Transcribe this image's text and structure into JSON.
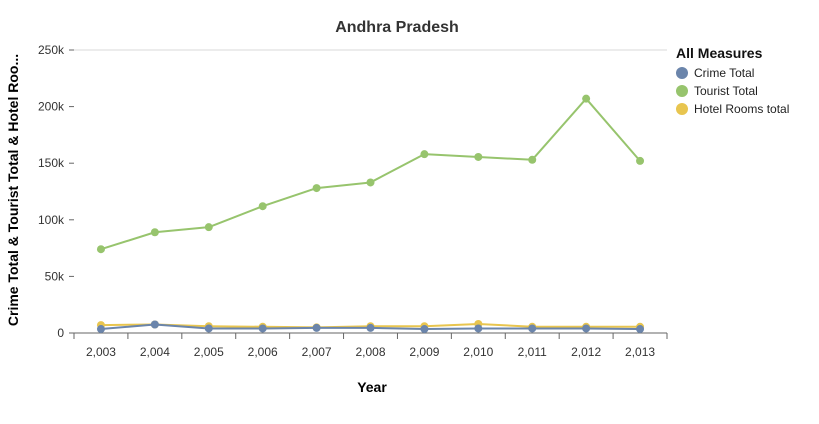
{
  "chart_data": {
    "type": "line",
    "title": "Andhra Pradesh",
    "xlabel": "Year",
    "ylabel": "Crime Total & Tourist Total & Hotel Roo...",
    "categories": [
      "2,003",
      "2,004",
      "2,005",
      "2,006",
      "2,007",
      "2,008",
      "2,009",
      "2,010",
      "2,011",
      "2,012",
      "2,013"
    ],
    "ylim": [
      0,
      250000
    ],
    "yticks": [
      0,
      50000,
      100000,
      150000,
      200000,
      250000
    ],
    "ytick_labels": [
      "0",
      "50k",
      "100k",
      "150k",
      "200k",
      "250k"
    ],
    "grid": "top line only",
    "legend": {
      "title": "All Measures",
      "position": "right"
    },
    "series": [
      {
        "name": "Crime Total",
        "color": "#6b85ab",
        "values": [
          3500,
          7500,
          4000,
          4000,
          4500,
          4500,
          3500,
          4000,
          4000,
          4000,
          3500
        ]
      },
      {
        "name": "Tourist Total",
        "color": "#97c46d",
        "values": [
          74000,
          89000,
          93500,
          112000,
          128000,
          133000,
          158000,
          155500,
          153000,
          207000,
          152000
        ]
      },
      {
        "name": "Hotel Rooms total",
        "color": "#e8c54f",
        "values": [
          7000,
          7500,
          6000,
          5500,
          5000,
          6000,
          6000,
          8000,
          5500,
          5500,
          5500
        ]
      }
    ]
  }
}
